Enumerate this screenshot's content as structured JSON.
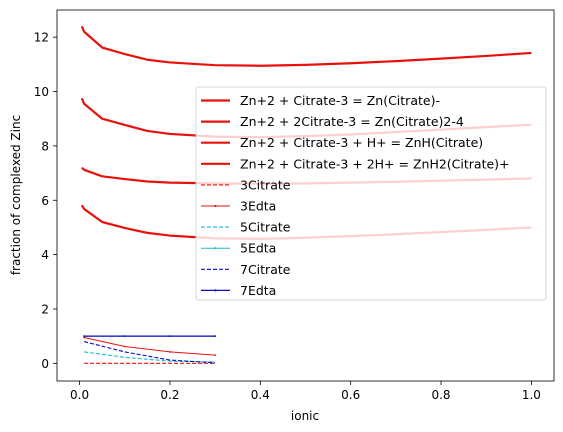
{
  "chart_data": {
    "type": "line",
    "title": "",
    "xlabel": "ionic",
    "ylabel": "fraction of complexed Zinc",
    "xlim": [
      -0.05,
      1.05
    ],
    "ylim": [
      -0.65,
      13.0
    ],
    "xticks": [
      0.0,
      0.2,
      0.4,
      0.6,
      0.8,
      1.0
    ],
    "xtick_labels": [
      "0.0",
      "0.2",
      "0.4",
      "0.6",
      "0.8",
      "1.0"
    ],
    "yticks": [
      0,
      2,
      4,
      6,
      8,
      10,
      12
    ],
    "ytick_labels": [
      "0",
      "2",
      "4",
      "6",
      "8",
      "10",
      "12"
    ],
    "grid": false,
    "legend_position": "center-right",
    "series": [
      {
        "name": "Zn+2 + Citrate-3 = Zn(Citrate)-",
        "color": "#e8120c",
        "style": "solid",
        "width": 2.2,
        "x": [
          0.005,
          0.01,
          0.05,
          0.1,
          0.15,
          0.2,
          0.3,
          0.4,
          0.5,
          0.6,
          0.7,
          0.8,
          0.9,
          1.0
        ],
        "y": [
          12.4,
          12.2,
          11.62,
          11.38,
          11.17,
          11.07,
          10.97,
          10.95,
          10.98,
          11.04,
          11.12,
          11.21,
          11.31,
          11.42
        ]
      },
      {
        "name": "Zn+2 + 2Citrate-3 = Zn(Citrate)2-4",
        "color": "#e8120c",
        "style": "solid",
        "width": 2.2,
        "x": [
          0.005,
          0.01,
          0.05,
          0.1,
          0.15,
          0.2,
          0.3,
          0.4,
          0.5,
          0.6,
          0.7,
          0.8,
          0.9,
          1.0
        ],
        "y": [
          9.75,
          9.55,
          9.0,
          8.77,
          8.55,
          8.44,
          8.34,
          8.32,
          8.36,
          8.42,
          8.51,
          8.6,
          8.69,
          8.78
        ]
      },
      {
        "name": "Zn+2 + Citrate-3 + H+ = ZnH(Citrate)",
        "color": "#e8120c",
        "style": "solid",
        "width": 2.2,
        "x": [
          0.005,
          0.01,
          0.05,
          0.1,
          0.15,
          0.2,
          0.3,
          0.4,
          0.5,
          0.6,
          0.7,
          0.8,
          0.9,
          1.0
        ],
        "y": [
          7.2,
          7.12,
          6.88,
          6.78,
          6.69,
          6.65,
          6.62,
          6.61,
          6.62,
          6.65,
          6.68,
          6.72,
          6.76,
          6.8
        ]
      },
      {
        "name": "Zn+2 + Citrate-3 + 2H+ = ZnH2(Citrate)+",
        "color": "#e8120c",
        "style": "solid",
        "width": 2.2,
        "x": [
          0.005,
          0.01,
          0.05,
          0.1,
          0.15,
          0.2,
          0.3,
          0.4,
          0.5,
          0.6,
          0.7,
          0.8,
          0.9,
          1.0
        ],
        "y": [
          5.82,
          5.68,
          5.2,
          4.98,
          4.8,
          4.7,
          4.6,
          4.58,
          4.62,
          4.68,
          4.75,
          4.83,
          4.91,
          5.0
        ]
      },
      {
        "name": "3Citrate",
        "color": "#e8120c",
        "style": "dashed",
        "width": 1.1,
        "x": [
          0.01,
          0.1,
          0.2,
          0.3
        ],
        "y": [
          0.0,
          0.0,
          0.0,
          0.0
        ]
      },
      {
        "name": "3Edta",
        "color": "#e8120c",
        "style": "solid",
        "width": 1.0,
        "marker": true,
        "x": [
          0.01,
          0.1,
          0.2,
          0.3
        ],
        "y": [
          0.95,
          0.62,
          0.42,
          0.3
        ]
      },
      {
        "name": "5Citrate",
        "color": "#17becf",
        "style": "dashed",
        "width": 1.1,
        "x": [
          0.01,
          0.1,
          0.2,
          0.3
        ],
        "y": [
          0.42,
          0.22,
          0.08,
          0.05
        ]
      },
      {
        "name": "5Edta",
        "color": "#17becf",
        "style": "solid",
        "width": 1.0,
        "marker": true,
        "x": [
          0.01,
          0.1,
          0.2,
          0.3
        ],
        "y": [
          1.0,
          1.0,
          1.0,
          1.0
        ]
      },
      {
        "name": "7Citrate",
        "color": "#0b0bc9",
        "style": "dashed",
        "width": 1.1,
        "x": [
          0.01,
          0.1,
          0.2,
          0.3
        ],
        "y": [
          0.8,
          0.42,
          0.12,
          0.02
        ]
      },
      {
        "name": "7Edta",
        "color": "#0b0bc9",
        "style": "solid",
        "width": 1.3,
        "marker": true,
        "x": [
          0.01,
          0.1,
          0.2,
          0.3
        ],
        "y": [
          1.0,
          1.0,
          1.0,
          1.0
        ]
      }
    ]
  }
}
